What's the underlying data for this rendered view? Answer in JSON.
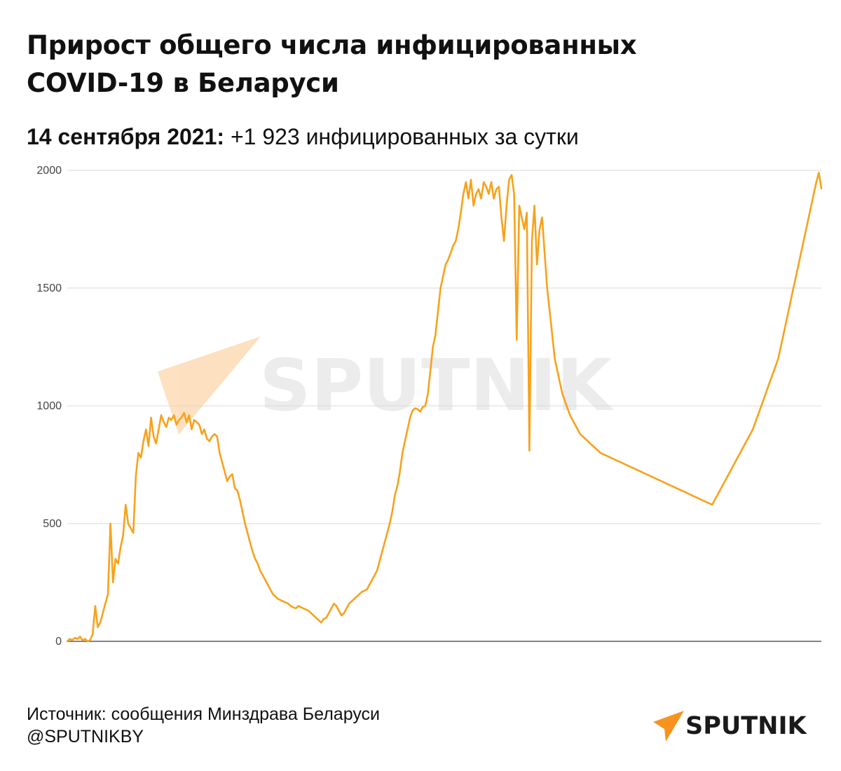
{
  "header": {
    "title_line1": "Прирост общего числа инфицированных",
    "title_line2": "COVID-19 в Беларуси",
    "subtitle_date": "14 сентября 2021:",
    "subtitle_text": " +1 923 инфицированных за сутки"
  },
  "footer": {
    "source": "Источник: сообщения Минздрава Беларуси",
    "handle": "@SPUTNIKBY"
  },
  "logo": {
    "text": "SPUTNIK"
  },
  "watermark": {
    "text": "SPUTNIK"
  },
  "colors": {
    "line": "#F7A21B",
    "grid": "#D9D9D9",
    "axis": "#5A5A5A",
    "logo_accent": "#F7931E"
  },
  "chart_data": {
    "type": "line",
    "title": "",
    "xlabel": "",
    "ylabel": "",
    "ylim": [
      0,
      2000
    ],
    "yticks": [
      0,
      500,
      1000,
      1500,
      2000
    ],
    "grid": true,
    "legend": "none",
    "series": [
      {
        "name": "",
        "values": [
          0,
          10,
          5,
          15,
          10,
          20,
          5,
          10,
          0,
          5,
          30,
          150,
          60,
          80,
          120,
          160,
          200,
          500,
          250,
          350,
          330,
          400,
          450,
          580,
          500,
          480,
          460,
          700,
          800,
          780,
          850,
          900,
          830,
          950,
          870,
          840,
          900,
          960,
          930,
          910,
          950,
          940,
          960,
          920,
          940,
          950,
          970,
          930,
          960,
          900,
          940,
          930,
          920,
          880,
          900,
          860,
          850,
          870,
          880,
          870,
          800,
          760,
          720,
          680,
          700,
          710,
          650,
          640,
          600,
          550,
          500,
          460,
          420,
          380,
          350,
          330,
          300,
          280,
          260,
          240,
          220,
          200,
          190,
          180,
          175,
          170,
          165,
          160,
          150,
          145,
          140,
          150,
          145,
          140,
          135,
          130,
          120,
          110,
          100,
          90,
          80,
          95,
          100,
          120,
          140,
          160,
          150,
          130,
          110,
          120,
          140,
          160,
          170,
          180,
          190,
          200,
          210,
          215,
          220,
          240,
          260,
          280,
          300,
          340,
          380,
          420,
          460,
          500,
          550,
          620,
          660,
          720,
          800,
          850,
          900,
          950,
          980,
          990,
          985,
          975,
          995,
          1000,
          1050,
          1150,
          1250,
          1300,
          1400,
          1500,
          1550,
          1600,
          1620,
          1650,
          1680,
          1700,
          1750,
          1820,
          1900,
          1950,
          1880,
          1960,
          1850,
          1900,
          1920,
          1880,
          1950,
          1930,
          1900,
          1950,
          1880,
          1920,
          1930,
          1800,
          1700,
          1850,
          1960,
          1980,
          1900,
          1280,
          1850,
          1800,
          1750,
          1820,
          810,
          1700,
          1850,
          1600,
          1750,
          1800,
          1650,
          1500,
          1400,
          1300,
          1200,
          1150,
          1100,
          1050,
          1020,
          990,
          960,
          940,
          920,
          900,
          880,
          870,
          860,
          850,
          840,
          830,
          820,
          810,
          800,
          795,
          790,
          785,
          780,
          775,
          770,
          765,
          760,
          755,
          750,
          745,
          740,
          735,
          730,
          725,
          720,
          715,
          710,
          705,
          700,
          695,
          690,
          685,
          680,
          675,
          670,
          665,
          660,
          655,
          650,
          645,
          640,
          635,
          630,
          625,
          620,
          615,
          610,
          605,
          600,
          595,
          590,
          585,
          580,
          600,
          620,
          640,
          660,
          680,
          700,
          720,
          740,
          760,
          780,
          800,
          820,
          840,
          860,
          880,
          900,
          930,
          960,
          990,
          1020,
          1050,
          1080,
          1110,
          1140,
          1170,
          1200,
          1250,
          1300,
          1350,
          1400,
          1450,
          1500,
          1550,
          1600,
          1650,
          1700,
          1750,
          1800,
          1850,
          1900,
          1950,
          1990,
          1923
        ]
      }
    ]
  }
}
